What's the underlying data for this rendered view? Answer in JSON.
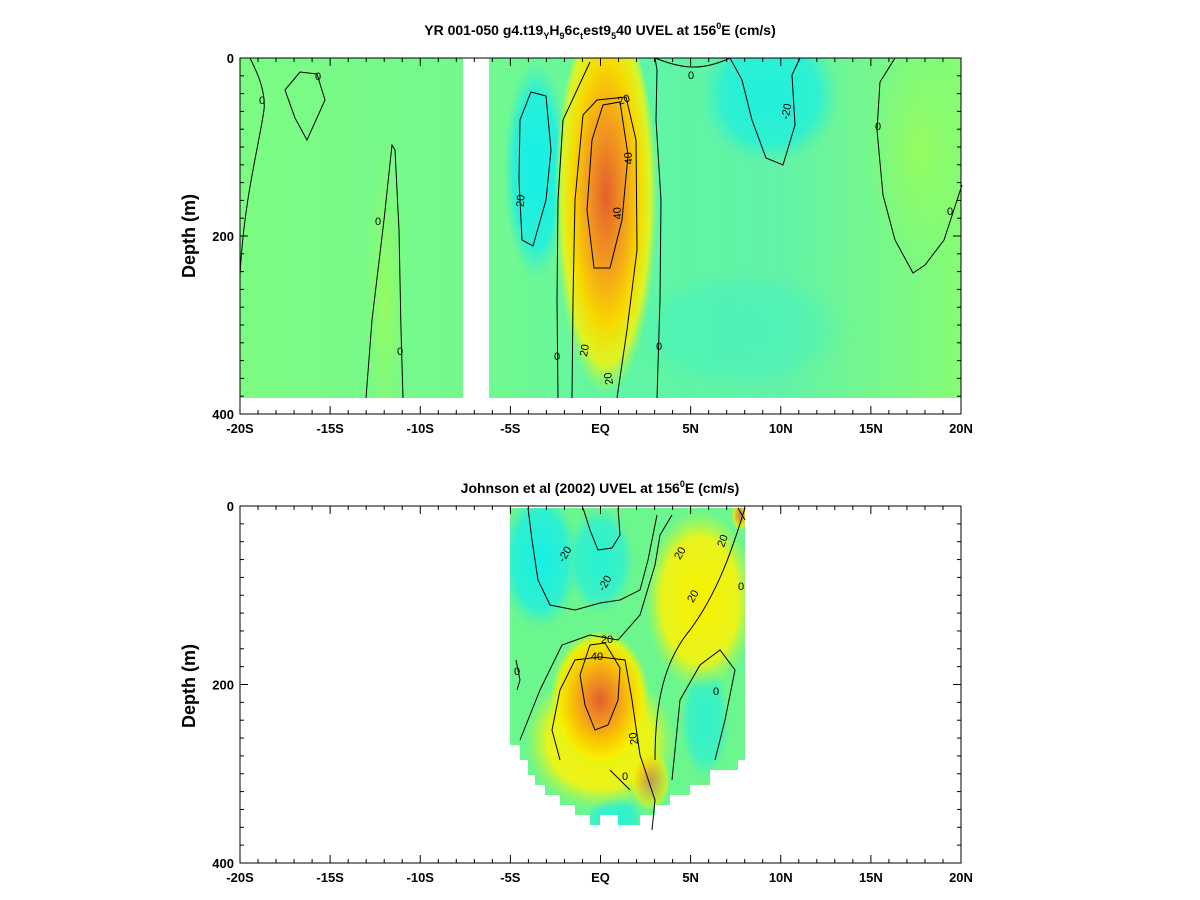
{
  "chart_data": [
    {
      "type": "heatmap",
      "title_parts": {
        "a": "YR 001-050 g4.t19",
        "b": "Y",
        "c": "H",
        "d": "9",
        "e": "6c",
        "f": "t",
        "g": "est9",
        "h": "5",
        "i": "40 UVEL at 156",
        "j": "0",
        "k": "E (cm/s)"
      },
      "ylabel": "Depth (m)",
      "x_ticklabels": [
        "-20S",
        "-15S",
        "-10S",
        "-5S",
        "EQ",
        "5N",
        "10N",
        "15N",
        "20N"
      ],
      "x_tickvalues": [
        -20,
        -15,
        -10,
        -5,
        0,
        5,
        10,
        15,
        20
      ],
      "y_ticklabels": [
        "0",
        "200",
        "400"
      ],
      "y_tickvalues": [
        0,
        200,
        400
      ],
      "xlim": [
        -20,
        20
      ],
      "ylim": [
        0,
        400
      ],
      "data_extent": {
        "lat": [
          -20,
          20
        ],
        "depth": [
          0,
          380
        ],
        "gap_lat": [
          -7.5,
          -6
        ]
      },
      "colors": {
        "cyan": "#14f0e6",
        "green": "#7cfc82",
        "yellow": "#f8f000",
        "orange": "#f29a1e",
        "red": "#e3602c"
      },
      "features": [
        {
          "lat": 0,
          "depth": 140,
          "value": 55,
          "kind": "eastward-core"
        },
        {
          "lat": -4,
          "depth": 130,
          "value": -25,
          "kind": "westward"
        },
        {
          "lat": 9,
          "depth": 40,
          "value": -20,
          "kind": "westward"
        }
      ],
      "contour_labels": [
        "0",
        "0",
        "0",
        "0",
        "0",
        "0",
        "0",
        "0",
        "-20",
        "-20",
        "20",
        "20",
        "20",
        "40",
        "40",
        "0"
      ]
    },
    {
      "type": "heatmap",
      "title_parts": {
        "a": "Johnson et al (2002) UVEL at 156",
        "b": "0",
        "c": "E (cm/s)"
      },
      "ylabel": "Depth (m)",
      "x_ticklabels": [
        "-20S",
        "-15S",
        "-10S",
        "-5S",
        "EQ",
        "5N",
        "10N",
        "15N",
        "20N"
      ],
      "x_tickvalues": [
        -20,
        -15,
        -10,
        -5,
        0,
        5,
        10,
        15,
        20
      ],
      "y_ticklabels": [
        "0",
        "200",
        "400"
      ],
      "y_tickvalues": [
        0,
        200,
        400
      ],
      "xlim": [
        -20,
        20
      ],
      "ylim": [
        0,
        400
      ],
      "data_extent": {
        "lat": [
          -5,
          8
        ],
        "depth": [
          0,
          355
        ]
      },
      "colors": {
        "cyan": "#14f0e6",
        "green": "#7cfc82",
        "yellow": "#f8f000",
        "orange": "#f29a1e",
        "red": "#e3602c"
      },
      "features": [
        {
          "lat": -0.5,
          "depth": 205,
          "value": 50,
          "kind": "eastward-core"
        },
        {
          "lat": -3,
          "depth": 50,
          "value": -25,
          "kind": "westward"
        },
        {
          "lat": 0,
          "depth": 60,
          "value": -20,
          "kind": "westward"
        }
      ],
      "contour_labels": [
        "-20",
        "-20",
        "40",
        "20",
        "20",
        "20",
        "20",
        "20",
        "0",
        "0",
        "0",
        "0"
      ]
    }
  ]
}
